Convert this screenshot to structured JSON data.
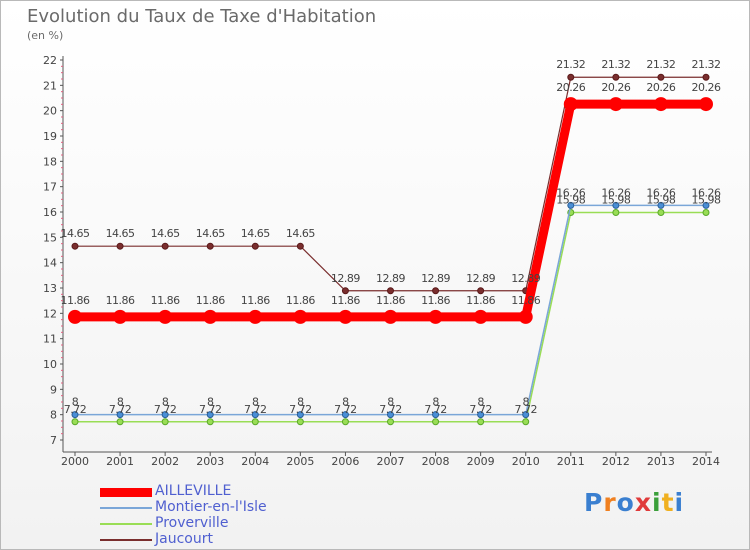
{
  "header": {
    "title": "Evolution du Taux de Taxe d'Habitation",
    "unit": "(en %)"
  },
  "brand": {
    "logo_text": "Proxiti"
  },
  "chart_data": {
    "type": "line",
    "title": "Evolution du Taux de Taxe d'Habitation",
    "ylabel": "(en %)",
    "xlabel": "",
    "ylim": [
      7,
      22
    ],
    "yticks": [
      7,
      8,
      9,
      10,
      11,
      12,
      13,
      14,
      15,
      16,
      17,
      18,
      19,
      20,
      21,
      22
    ],
    "x": [
      "2000",
      "2001",
      "2002",
      "2003",
      "2004",
      "2005",
      "2006",
      "2007",
      "2008",
      "2009",
      "2010",
      "2011",
      "2012",
      "2013",
      "2014"
    ],
    "grid": false,
    "legend_position": "bottom-left",
    "series": [
      {
        "name": "AILLEVILLE",
        "color": "#ff0000",
        "values": [
          11.86,
          11.86,
          11.86,
          11.86,
          11.86,
          11.86,
          11.86,
          11.86,
          11.86,
          11.86,
          11.86,
          20.26,
          20.26,
          20.26,
          20.26
        ],
        "labels": [
          "11.86",
          "11.86",
          "11.86",
          "11.86",
          "11.86",
          "11.86",
          "11.86",
          "11.86",
          "11.86",
          "11.86",
          "11.86",
          "20.26",
          "20.26",
          "20.26",
          "20.26"
        ]
      },
      {
        "name": "Montier-en-l'Isle",
        "color": "#7aa6d8",
        "values": [
          8,
          8,
          8,
          8,
          8,
          8,
          8,
          8,
          8,
          8,
          8,
          16.26,
          16.26,
          16.26,
          16.26
        ],
        "labels": [
          "8",
          "8",
          "8",
          "8",
          "8",
          "8",
          "8",
          "8",
          "8",
          "8",
          "8",
          "16.26",
          "16.26",
          "16.26",
          "16.26"
        ]
      },
      {
        "name": "Proverville",
        "color": "#99dd55",
        "values": [
          7.72,
          7.72,
          7.72,
          7.72,
          7.72,
          7.72,
          7.72,
          7.72,
          7.72,
          7.72,
          7.72,
          15.98,
          15.98,
          15.98,
          15.98
        ],
        "labels": [
          "7.72",
          "7.72",
          "7.72",
          "7.72",
          "7.72",
          "7.72",
          "7.72",
          "7.72",
          "7.72",
          "7.72",
          "7.72",
          "15.98",
          "15.98",
          "15.98",
          "15.98"
        ]
      },
      {
        "name": "Jaucourt",
        "color": "#7a2e2e",
        "values": [
          14.65,
          14.65,
          14.65,
          14.65,
          14.65,
          14.65,
          12.89,
          12.89,
          12.89,
          12.89,
          12.89,
          21.32,
          21.32,
          21.32,
          21.32
        ],
        "labels": [
          "14.65",
          "14.65",
          "14.65",
          "14.65",
          "14.65",
          "14.65",
          "12.89",
          "12.89",
          "12.89",
          "12.89",
          "12.89",
          "21.32",
          "21.32",
          "21.32",
          "21.32"
        ]
      }
    ]
  }
}
